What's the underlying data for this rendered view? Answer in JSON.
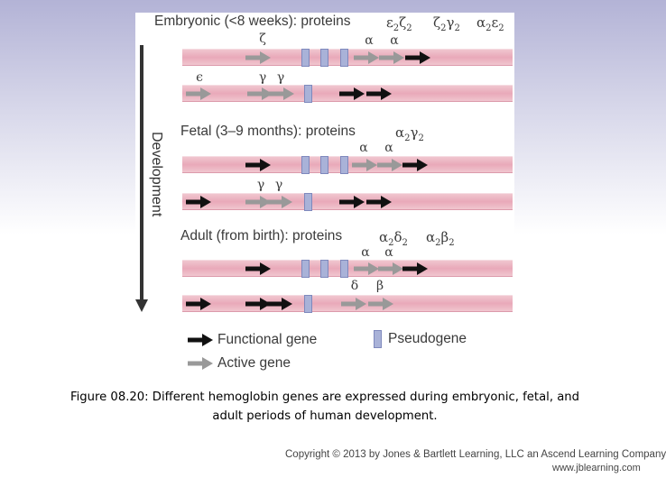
{
  "figure": {
    "development_label": "Development",
    "embryonic": {
      "title": "Embryonic (<8 weeks): proteins",
      "proteins": [
        {
          "base": "ε",
          "sub": "2",
          "base2": "ζ",
          "sub2": "2"
        },
        {
          "base": "ζ",
          "sub": "2",
          "base2": "γ",
          "sub2": "2"
        },
        {
          "base": "α",
          "sub": "2",
          "base2": "ε",
          "sub2": "2"
        }
      ],
      "alpha_genes": {
        "zeta": "ζ",
        "alpha1": "α",
        "alpha2": "α"
      },
      "beta_genes": {
        "epsilon": "ϵ",
        "gamma1": "γ",
        "gamma2": "γ"
      }
    },
    "fetal": {
      "title": "Fetal (3–9 months): proteins",
      "proteins": [
        {
          "base": "α",
          "sub": "2",
          "base2": "γ",
          "sub2": "2"
        }
      ],
      "alpha_genes": {
        "alpha1": "α",
        "alpha2": "α"
      },
      "beta_genes": {
        "gamma1": "γ",
        "gamma2": "γ"
      }
    },
    "adult": {
      "title": "Adult (from birth): proteins",
      "proteins": [
        {
          "base": "α",
          "sub": "2",
          "base2": "δ",
          "sub2": "2"
        },
        {
          "base": "α",
          "sub": "2",
          "base2": "β",
          "sub2": "2"
        }
      ],
      "alpha_genes": {
        "alpha1": "α",
        "alpha2": "α"
      },
      "beta_genes": {
        "delta": "δ",
        "beta": "β"
      }
    },
    "legend": {
      "functional": "Functional gene",
      "active": "Active gene",
      "pseudogene": "Pseudogene"
    },
    "colors": {
      "functional_arrow": "#111111",
      "active_arrow": "#999999",
      "chromosome": "#e9a9b9",
      "pseudogene": "#a9b2d8"
    }
  },
  "caption": {
    "line1": "Figure 08.20: Different hemoglobin genes are expressed during embryonic, fetal, and",
    "line2": "adult periods of human development."
  },
  "footer": {
    "copyright": "Copyright © 2013 by Jones & Bartlett Learning, LLC an Ascend Learning Company",
    "url": "www.jblearning.com"
  }
}
